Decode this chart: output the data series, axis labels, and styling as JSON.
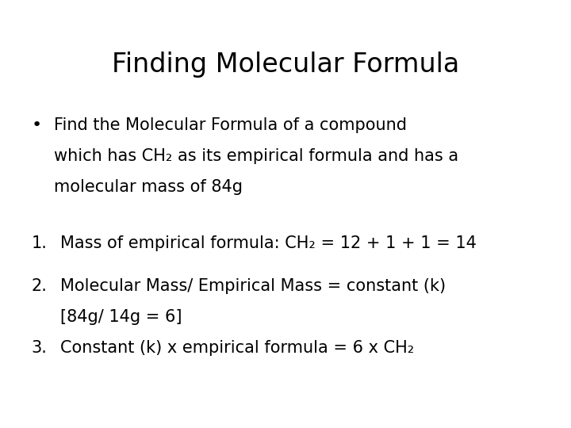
{
  "title": "Finding Molecular Formula",
  "background_color": "#ffffff",
  "text_color": "#000000",
  "title_fontsize": 24,
  "body_fontsize": 15,
  "bullet_line1": "Find the Molecular Formula of a compound",
  "bullet_line2": "which has CH₂ as its empirical formula and has a",
  "bullet_line3": "molecular mass of 84g",
  "num1_line1": "Mass of empirical formula: CH₂ = 12 + 1 + 1 = 14",
  "num2_line1": "Molecular Mass/ Empirical Mass = constant (k)",
  "num2_line2": "[84g/ 14g = 6]",
  "num3_line1": "Constant (k) x empirical formula = 6 x CH₂",
  "font_family": "DejaVu Sans"
}
